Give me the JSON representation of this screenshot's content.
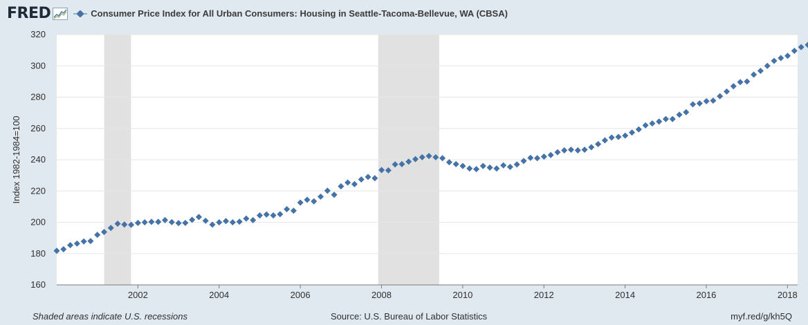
{
  "header": {
    "logo": "FRED",
    "logo_mark": "line-chart-icon",
    "title": "Consumer Price Index for All Urban Consumers: Housing in Seattle-Tacoma-Bellevue, WA (CBSA)"
  },
  "footer": {
    "note": "Shaded areas indicate U.S. recessions",
    "source": "Source: U.S. Bureau of Labor Statistics",
    "link": "myf.red/g/kh5Q"
  },
  "colors": {
    "series": "#4572a7",
    "recession": "#e1e1e1",
    "background": "#e1e9f0",
    "plot": "#ffffff"
  },
  "chart_data": {
    "type": "scatter",
    "title": "Consumer Price Index for All Urban Consumers: Housing in Seattle-Tacoma-Bellevue, WA (CBSA)",
    "xlabel": "",
    "ylabel": "Index 1982-1984=100",
    "xlim": [
      2000.0,
      2018.25
    ],
    "ylim": [
      160,
      320
    ],
    "xticks": [
      2002,
      2004,
      2006,
      2008,
      2010,
      2012,
      2014,
      2016,
      2018
    ],
    "xtick_labels": [
      "2002",
      "2004",
      "2006",
      "2008",
      "2010",
      "2012",
      "2014",
      "2016",
      "2018"
    ],
    "yticks": [
      160,
      180,
      200,
      220,
      240,
      260,
      280,
      300,
      320
    ],
    "ytick_labels": [
      "160",
      "180",
      "200",
      "220",
      "240",
      "260",
      "280",
      "300",
      "320"
    ],
    "grid": "horizontal",
    "recessions": [
      [
        2001.17,
        2001.83
      ],
      [
        2007.92,
        2009.42
      ]
    ],
    "series": [
      {
        "start": 2000.0,
        "step": 0.1667,
        "values": [
          181.8,
          182.8,
          185.4,
          186.4,
          187.8,
          188.0,
          192.0,
          193.8,
          196.4,
          199.1,
          198.6,
          198.4,
          199.6,
          200.0,
          200.3,
          200.3,
          201.4,
          200.1,
          199.5,
          199.6,
          201.6,
          203.4,
          201.0,
          198.5,
          200.0,
          200.8,
          200.0,
          200.4,
          202.4,
          201.4,
          204.4,
          205.0,
          204.4,
          205.2,
          208.4,
          207.4,
          212.6,
          214.4,
          213.4,
          216.4,
          220.2,
          217.6,
          223.0,
          225.4,
          224.4,
          227.4,
          229.0,
          228.2,
          233.4,
          233.2,
          237.0,
          237.2,
          238.8,
          240.4,
          241.6,
          242.4,
          241.6,
          241.0,
          238.4,
          237.2,
          236.0,
          234.4,
          234.0,
          236.0,
          235.0,
          234.4,
          236.4,
          235.4,
          237.0,
          239.2,
          241.2,
          241.0,
          242.0,
          243.0,
          244.8,
          246.0,
          246.4,
          246.0,
          246.4,
          248.0,
          250.0,
          252.4,
          254.2,
          254.6,
          255.4,
          257.4,
          259.4,
          262.0,
          263.2,
          264.4,
          266.0,
          266.0,
          268.8,
          270.4,
          275.4,
          276.0,
          277.4,
          277.8,
          280.6,
          283.6,
          287.0,
          289.6,
          290.0,
          294.4,
          296.8,
          300.0,
          303.2,
          305.0,
          306.4,
          309.6,
          312.0,
          313.4
        ]
      }
    ]
  }
}
